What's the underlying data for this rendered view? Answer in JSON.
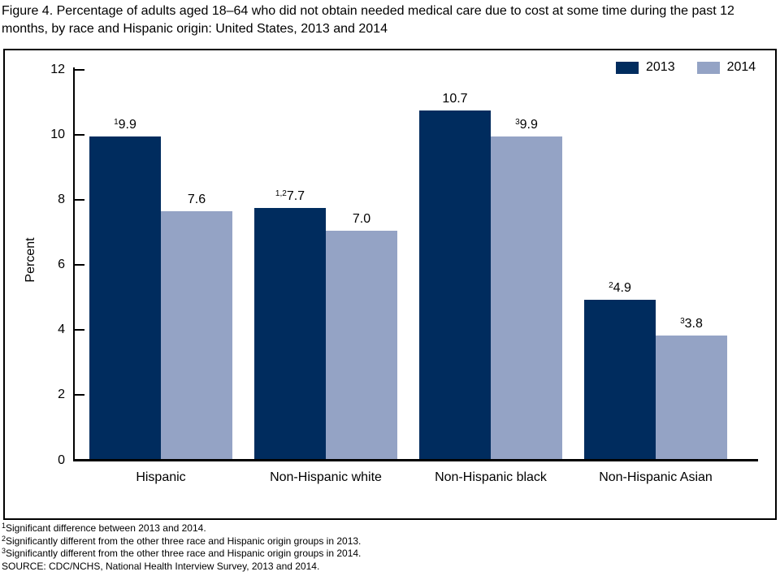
{
  "title": "Figure 4. Percentage of adults aged 18–64 who did not obtain needed medical care due to cost at some time during the past 12 months, by race and Hispanic origin: United States, 2013 and 2014",
  "chart_data": {
    "type": "bar",
    "categories": [
      "Hispanic",
      "Non-Hispanic white",
      "Non-Hispanic black",
      "Non-Hispanic Asian"
    ],
    "series": [
      {
        "name": "2013",
        "color": "#002C5E",
        "values": [
          9.9,
          7.7,
          10.7,
          4.9
        ],
        "value_sups": [
          "1",
          "1,2",
          "",
          "2"
        ]
      },
      {
        "name": "2014",
        "color": "#94A3C5",
        "values": [
          7.6,
          7.0,
          9.9,
          3.8
        ],
        "value_sups": [
          "",
          "",
          "3",
          "3"
        ]
      }
    ],
    "xlabel": "",
    "ylabel": "Percent",
    "ylim": [
      0,
      12
    ],
    "yticks": [
      0,
      2,
      4,
      6,
      8,
      10,
      12
    ],
    "grid": false,
    "legend_position": "top-right",
    "value_label_decimals": 1
  },
  "footnotes": [
    {
      "sup": "1",
      "text": "Significant difference between 2013 and 2014."
    },
    {
      "sup": "2",
      "text": "Significantly different from the other three race and Hispanic origin groups in 2013."
    },
    {
      "sup": "3",
      "text": "Significantly different from the other three race and Hispanic origin groups in 2014."
    },
    {
      "sup": "",
      "text": "SOURCE: CDC/NCHS, National Health Interview Survey, 2013 and 2014."
    }
  ],
  "colors": {
    "series_2013": "#002C5E",
    "series_2014": "#94A3C5",
    "axis": "#000000",
    "text": "#000000",
    "background": "#FFFFFF"
  }
}
